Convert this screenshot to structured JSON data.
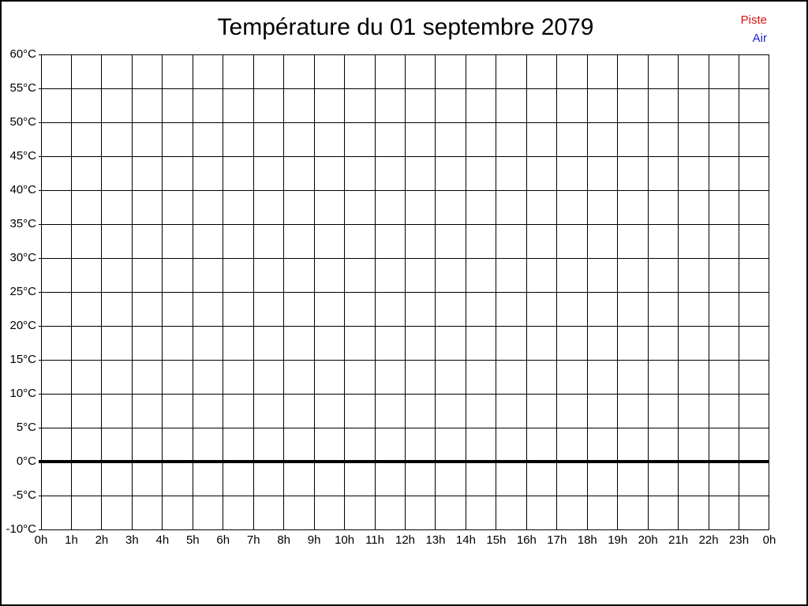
{
  "title": "Température du 01 septembre 2079",
  "legend": {
    "items": [
      {
        "label": "Piste",
        "color": "#dd1111"
      },
      {
        "label": "Air",
        "color": "#2222cc"
      }
    ]
  },
  "chart_data": {
    "type": "line",
    "title": "Température du 01 septembre 2079",
    "xlabel": "",
    "ylabel": "",
    "x_tick_labels": [
      "0h",
      "1h",
      "2h",
      "3h",
      "4h",
      "5h",
      "6h",
      "7h",
      "8h",
      "9h",
      "10h",
      "11h",
      "12h",
      "13h",
      "14h",
      "15h",
      "16h",
      "17h",
      "18h",
      "19h",
      "20h",
      "21h",
      "22h",
      "23h",
      "0h"
    ],
    "y_tick_labels": [
      "60°C",
      "55°C",
      "50°C",
      "45°C",
      "40°C",
      "35°C",
      "30°C",
      "25°C",
      "20°C",
      "15°C",
      "10°C",
      "5°C",
      "0°C",
      "-5°C",
      "-10°C"
    ],
    "ylim": [
      -10,
      60
    ],
    "y_step": 5,
    "grid": true,
    "grid_color": "#000000",
    "zero_line_emphasized": true,
    "legend_position": "top-right",
    "series": [
      {
        "name": "Piste",
        "color": "#dd1111",
        "values": []
      },
      {
        "name": "Air",
        "color": "#2222cc",
        "values": []
      }
    ]
  }
}
